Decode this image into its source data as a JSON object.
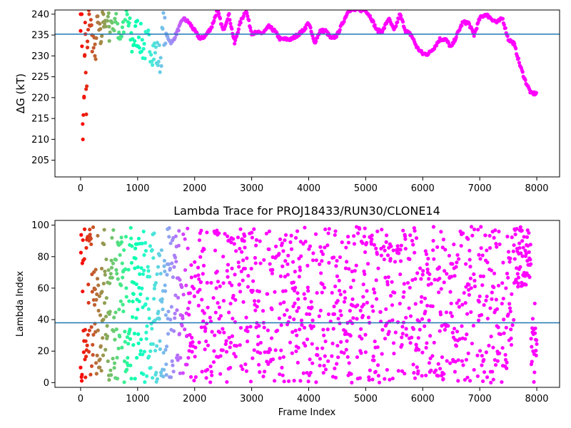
{
  "chart_data": [
    {
      "type": "scatter",
      "title": "",
      "xlabel": "",
      "ylabel": "ΔG (kT)",
      "xlim": [
        -450,
        8400
      ],
      "ylim": [
        201,
        241
      ],
      "xticks": [
        "0",
        "1000",
        "2000",
        "3000",
        "4000",
        "5000",
        "6000",
        "7000",
        "8000"
      ],
      "yticks": [
        "205",
        "210",
        "215",
        "220",
        "225",
        "230",
        "235",
        "240"
      ],
      "hline": 235.2,
      "hline_color": "#1f77b4",
      "colormap": "rainbow (red at early frames → violet at late frames)",
      "series": [
        {
          "values": [
            [
              0,
              240
            ],
            [
              20,
              240
            ],
            [
              40,
              210
            ],
            [
              60,
              220
            ],
            [
              70,
              230
            ],
            [
              80,
              238
            ],
            [
              90,
              226
            ],
            [
              100,
              216
            ],
            [
              120,
              232
            ],
            [
              150,
              240
            ],
            [
              200,
              235
            ],
            [
              250,
              230
            ],
            [
              300,
              238
            ],
            [
              350,
              233
            ],
            [
              400,
              240
            ],
            [
              500,
              237
            ],
            [
              600,
              240
            ],
            [
              700,
              235
            ],
            [
              800,
              240
            ],
            [
              900,
              233
            ],
            [
              1000,
              236
            ],
            [
              1100,
              232
            ],
            [
              1200,
              233
            ],
            [
              1300,
              231
            ],
            [
              1400,
              229
            ],
            [
              1450,
              237
            ],
            [
              1500,
              235
            ],
            [
              1600,
              233
            ],
            [
              1700,
              236
            ],
            [
              1800,
              239
            ],
            [
              1900,
              238
            ],
            [
              2000,
              236
            ],
            [
              2100,
              234
            ],
            [
              2200,
              235
            ],
            [
              2300,
              237
            ],
            [
              2400,
              241
            ],
            [
              2500,
              236
            ],
            [
              2600,
              240
            ],
            [
              2700,
              233
            ],
            [
              2800,
              238
            ],
            [
              2900,
              241
            ],
            [
              3000,
              235.5
            ],
            [
              3200,
              235.5
            ],
            [
              3300,
              237
            ],
            [
              3400,
              236
            ],
            [
              3500,
              234
            ],
            [
              3600,
              234
            ],
            [
              3700,
              234
            ],
            [
              3800,
              235
            ],
            [
              3900,
              236
            ],
            [
              4000,
              238
            ],
            [
              4100,
              233
            ],
            [
              4200,
              236
            ],
            [
              4300,
              236
            ],
            [
              4400,
              234
            ],
            [
              4500,
              235
            ],
            [
              4600,
              238
            ],
            [
              4700,
              241
            ],
            [
              4800,
              241
            ],
            [
              4900,
              241
            ],
            [
              5000,
              241
            ],
            [
              5100,
              239
            ],
            [
              5200,
              236
            ],
            [
              5300,
              236
            ],
            [
              5400,
              239
            ],
            [
              5500,
              236
            ],
            [
              5600,
              240
            ],
            [
              5700,
              236
            ],
            [
              5800,
              235
            ],
            [
              5900,
              232
            ],
            [
              6000,
              230.5
            ],
            [
              6100,
              230.5
            ],
            [
              6200,
              232
            ],
            [
              6300,
              234
            ],
            [
              6400,
              234
            ],
            [
              6500,
              232
            ],
            [
              6600,
              235
            ],
            [
              6700,
              238
            ],
            [
              6800,
              238
            ],
            [
              6900,
              235
            ],
            [
              7000,
              239
            ],
            [
              7100,
              240
            ],
            [
              7200,
              239
            ],
            [
              7300,
              238
            ],
            [
              7400,
              239
            ],
            [
              7500,
              234
            ],
            [
              7600,
              233
            ],
            [
              7700,
              228
            ],
            [
              7800,
              224
            ],
            [
              7900,
              221
            ],
            [
              8000,
              221
            ]
          ]
        }
      ]
    },
    {
      "type": "scatter",
      "title": "Lambda Trace for PROJ18433/RUN30/CLONE14",
      "xlabel": "Frame Index",
      "ylabel": "Lambda Index",
      "xlim": [
        -450,
        8400
      ],
      "ylim": [
        -3,
        103
      ],
      "xticks": [
        "0",
        "1000",
        "2000",
        "3000",
        "4000",
        "5000",
        "6000",
        "7000",
        "8000"
      ],
      "yticks": [
        "0",
        "20",
        "40",
        "60",
        "80",
        "100"
      ],
      "hline": 38,
      "hline_color": "#1f77b4",
      "colormap": "rainbow (red at early frames → violet at late frames)",
      "series": [
        {
          "values": "dense scatter of 8000 frames with lambda index values spanning 0–99; early frames (0–1700) cover the full range in warm/cyan colours, frames 1800–7500 violet points spanning the full range in vertical bands, frames 7600–7900 concentrated between 60 and 99, frames 7900–8000 scattered between 0 and 58"
        }
      ]
    }
  ]
}
